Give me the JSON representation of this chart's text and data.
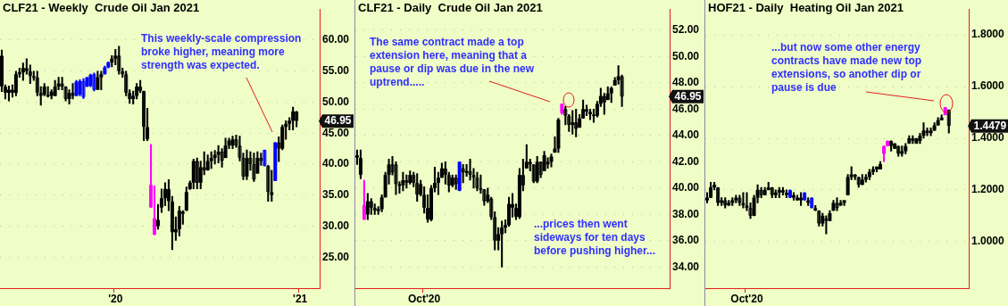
{
  "chart_data": [
    {
      "type": "candlestick",
      "title": "CLF21 - Weekly  Crude Oil Jan 2021",
      "categories": [
        null,
        null,
        null,
        null,
        null,
        null,
        null,
        null,
        null,
        null,
        null,
        null,
        null,
        null,
        null,
        null,
        null,
        null,
        null,
        null,
        null,
        null,
        null,
        null,
        null,
        null,
        null,
        null,
        null,
        null,
        null,
        null,
        "'20",
        null,
        null,
        null,
        null,
        null,
        null,
        null,
        null,
        null,
        null,
        null,
        null,
        null,
        null,
        null,
        null,
        null,
        null,
        null,
        null,
        null,
        null,
        null,
        null,
        null,
        null,
        null,
        null,
        null,
        null,
        null,
        null,
        null,
        null,
        null,
        null,
        null,
        null,
        null,
        null,
        null,
        null,
        null,
        null,
        null,
        null,
        null,
        null,
        null,
        null,
        null,
        "'21",
        null,
        null,
        null,
        null,
        null
      ],
      "ohlc": [
        [
          57.5,
          58.4,
          51.7,
          52.5
        ],
        [
          52.5,
          52.8,
          50.5,
          51.5
        ],
        [
          51.5,
          52.6,
          50.2,
          52.0
        ],
        [
          52.0,
          52.8,
          50.8,
          51.5
        ],
        [
          51.5,
          55.0,
          51.0,
          54.5
        ],
        [
          54.5,
          55.5,
          54.0,
          54.8
        ],
        [
          54.8,
          56.3,
          53.5,
          55.5
        ],
        [
          55.5,
          57.0,
          54.5,
          55.0
        ],
        [
          55.0,
          56.0,
          53.0,
          54.2
        ],
        [
          54.2,
          55.0,
          53.5,
          54.0
        ],
        [
          54.0,
          55.0,
          51.0,
          51.5
        ],
        [
          51.5,
          52.5,
          49.5,
          51.0
        ],
        [
          51.2,
          53.0,
          51.0,
          52.5
        ],
        [
          51.2,
          52.5,
          50.8,
          51.0
        ],
        [
          51.0,
          52.0,
          50.5,
          51.7
        ],
        [
          51.0,
          53.5,
          51.0,
          52.5
        ],
        [
          52.5,
          54.0,
          52.0,
          53.0
        ],
        [
          53.0,
          54.0,
          52.0,
          52.5
        ],
        [
          52.5,
          52.5,
          50.2,
          50.5
        ],
        [
          50.5,
          52.0,
          49.7,
          51.5
        ],
        [
          51.5,
          53.0,
          50.5,
          51.0
        ],
        [
          51.0,
          53.5,
          51.0,
          53.3
        ],
        [
          51.2,
          53.6,
          51.0,
          53.4
        ],
        [
          53.4,
          53.8,
          50.6,
          50.8
        ],
        [
          52.5,
          54.0,
          52.5,
          54.0
        ],
        [
          52.6,
          54.5,
          52.5,
          54.4
        ],
        [
          54.5,
          54.7,
          51.8,
          52.0
        ],
        [
          52.0,
          55.0,
          52.0,
          54.0
        ],
        [
          54.0,
          55.0,
          52.0,
          54.5
        ],
        [
          54.5,
          55.8,
          54.5,
          55.6
        ],
        [
          55.6,
          56.5,
          55.5,
          56.4
        ],
        [
          56.4,
          57.5,
          55.7,
          57.0
        ],
        [
          57.0,
          58.5,
          56.0,
          57.5
        ],
        [
          57.5,
          59.0,
          54.5,
          55.0
        ],
        [
          55.0,
          55.5,
          54.0,
          54.5
        ],
        [
          54.5,
          55.0,
          51.0,
          51.5
        ],
        [
          51.5,
          52.0,
          49.8,
          50.5
        ],
        [
          50.5,
          51.8,
          49.7,
          51.0
        ],
        [
          51.0,
          53.0,
          50.5,
          52.5
        ],
        [
          52.5,
          53.5,
          51.5,
          51.8
        ],
        [
          51.8,
          51.8,
          43.8,
          46.0
        ],
        [
          46.0,
          49.0,
          43.8,
          44.0
        ],
        [
          36.7,
          43.2,
          33.0,
          33.0
        ],
        [
          31.3,
          36.5,
          28.6,
          28.6
        ],
        [
          30.0,
          33.5,
          29.5,
          31.0
        ],
        [
          33.0,
          36.0,
          32.2,
          34.5
        ],
        [
          34.5,
          37.0,
          33.3,
          36.0
        ],
        [
          36.0,
          37.5,
          32.5,
          34.0
        ],
        [
          34.0,
          34.8,
          26.2,
          29.0
        ],
        [
          29.0,
          31.5,
          27.7,
          29.5
        ],
        [
          29.5,
          33.2,
          28.4,
          32.5
        ],
        [
          32.0,
          32.5,
          30.3,
          32.3
        ],
        [
          32.5,
          36.3,
          32.5,
          35.5
        ],
        [
          36.0,
          37.3,
          35.9,
          37.0
        ],
        [
          37.0,
          40.8,
          36.0,
          40.5
        ],
        [
          40.5,
          41.0,
          36.0,
          37.0
        ],
        [
          37.0,
          40.5,
          36.0,
          39.5
        ],
        [
          39.5,
          42.0,
          38.3,
          39.0
        ],
        [
          39.0,
          41.5,
          39.0,
          40.5
        ],
        [
          40.5,
          42.0,
          39.3,
          41.0
        ],
        [
          41.0,
          42.2,
          40.0,
          41.5
        ],
        [
          41.5,
          43.0,
          40.2,
          42.0
        ],
        [
          42.0,
          42.5,
          39.5,
          40.5
        ],
        [
          41.0,
          44.2,
          41.0,
          43.0
        ],
        [
          43.0,
          44.2,
          42.5,
          43.8
        ],
        [
          43.0,
          44.5,
          42.5,
          44.0
        ],
        [
          44.0,
          44.7,
          42.7,
          43.0
        ],
        [
          43.0,
          44.5,
          40.5,
          41.0
        ],
        [
          41.0,
          41.8,
          37.5,
          38.0
        ],
        [
          38.0,
          42.3,
          37.5,
          41.0
        ],
        [
          41.0,
          42.0,
          39.0,
          40.0
        ],
        [
          40.0,
          41.8,
          37.2,
          37.5
        ],
        [
          38.5,
          42.0,
          38.5,
          41.0
        ],
        [
          41.0,
          41.8,
          39.8,
          40.5
        ],
        [
          42.3,
          42.3,
          39.7,
          39.7
        ],
        [
          39.7,
          39.8,
          34.0,
          35.5
        ],
        [
          35.5,
          39.0,
          34.0,
          35.0
        ],
        [
          37.3,
          43.5,
          37.3,
          43.5
        ],
        [
          43.5,
          44.4,
          40.4,
          42.5
        ],
        [
          42.5,
          46.3,
          42.3,
          46.0
        ],
        [
          46.0,
          47.0,
          44.0,
          46.5
        ],
        [
          46.5,
          47.5,
          45.5,
          47.0
        ],
        [
          47.0,
          49.2,
          45.5,
          48.5
        ],
        [
          48.5,
          48.5,
          46.0,
          46.95
        ],
        null,
        null,
        null,
        null,
        null,
        null
      ],
      "colors": [
        "#000000",
        "#000000",
        "#000000",
        "#000000",
        "#000000",
        "#000000",
        "#000000",
        "#000000",
        "#000000",
        "#000000",
        "#000000",
        "#000000",
        "#000000",
        "#000000",
        "#000000",
        "#000000",
        "#000000",
        "#000000",
        "#000000",
        "#000000",
        "#000000",
        "#0000ff",
        "#0000ff",
        "#0000ff",
        "#0000ff",
        "#0000ff",
        "#0000ff",
        "#000000",
        "#000000",
        "#0000ff",
        "#0000ff",
        "#000000",
        "#000000",
        "#000000",
        "#000000",
        "#000000",
        "#000000",
        "#000000",
        "#000000",
        "#000000",
        "#000000",
        "#000000",
        "#ff00ff",
        "#ff00ff",
        "#000000",
        "#000000",
        "#000000",
        "#000000",
        "#000000",
        "#000000",
        "#000000",
        "#000000",
        "#000000",
        "#000000",
        "#000000",
        "#000000",
        "#000000",
        "#000000",
        "#000000",
        "#000000",
        "#000000",
        "#000000",
        "#000000",
        "#000000",
        "#000000",
        "#000000",
        "#000000",
        "#000000",
        "#000000",
        "#000000",
        "#000000",
        "#000000",
        "#000000",
        "#000000",
        "#0000ff",
        "#000000",
        "#000000",
        "#0000ff",
        "#000000",
        "#000000",
        "#000000",
        "#000000",
        "#000000",
        "#000000",
        null,
        null,
        null,
        null,
        null,
        null
      ],
      "ylim": [
        20,
        65
      ],
      "yticks": [
        {
          "value": 25,
          "label": "25.00"
        },
        {
          "value": 30,
          "label": "30.00"
        },
        {
          "value": 35,
          "label": "35.00"
        },
        {
          "value": 40,
          "label": "40.00"
        },
        {
          "value": 45,
          "label": "45.00"
        },
        {
          "value": 50,
          "label": "50.00"
        },
        {
          "value": 55,
          "label": "55.00"
        },
        {
          "value": 60,
          "label": "60.00"
        }
      ],
      "grid": "y",
      "annotations": [
        "This weekly-scale compression broke higher, meaning more strength was expected.",
        "46.95"
      ]
    },
    {
      "type": "candlestick",
      "title": "CLF21 - Daily  Crude Oil Jan 2021",
      "categories": [
        null,
        null,
        null,
        null,
        null,
        null,
        null,
        null,
        null,
        null,
        null,
        null,
        null,
        null,
        null,
        null,
        null,
        null,
        null,
        "Oct'20",
        null,
        null,
        null,
        null,
        null,
        null,
        null,
        null,
        null,
        null,
        null,
        null,
        null,
        null,
        null,
        null,
        null,
        null,
        null,
        null,
        null,
        null,
        null,
        null,
        null,
        null,
        null,
        null,
        null,
        null,
        null,
        null,
        null,
        null,
        null,
        null,
        null,
        null,
        null,
        null,
        null,
        null,
        null,
        null,
        null,
        null,
        null,
        null,
        null,
        null,
        null,
        null,
        null,
        null,
        null,
        null,
        null,
        null,
        null,
        null,
        null,
        null,
        null,
        null,
        null,
        null,
        null,
        null,
        null
      ],
      "ohlc": [
        [
          42.5,
          42.9,
          41.8,
          42.3
        ],
        [
          42.3,
          42.9,
          40.7,
          41.0
        ],
        [
          38.7,
          40.6,
          37.6,
          37.6
        ],
        [
          38.0,
          39.6,
          37.6,
          39.0
        ],
        [
          39.0,
          39.2,
          38.0,
          38.5
        ],
        [
          38.5,
          38.8,
          38.0,
          38.3
        ],
        [
          38.3,
          38.6,
          38.0,
          38.4
        ],
        [
          38.4,
          39.5,
          38.2,
          39.3
        ],
        [
          39.3,
          41.2,
          39.3,
          41.0
        ],
        [
          41.0,
          42.2,
          40.3,
          41.8
        ],
        [
          41.8,
          42.4,
          41.0,
          41.2
        ],
        [
          41.8,
          42.0,
          39.5,
          40.3
        ],
        [
          40.3,
          40.5,
          39.6,
          40.2
        ],
        [
          40.2,
          41.2,
          39.8,
          40.6
        ],
        [
          40.6,
          41.0,
          40.0,
          40.4
        ],
        [
          40.4,
          41.3,
          40.3,
          41.0
        ],
        [
          41.0,
          41.2,
          40.1,
          40.4
        ],
        [
          40.4,
          41.1,
          39.0,
          39.5
        ],
        [
          39.5,
          40.6,
          39.4,
          40.3
        ],
        [
          39.5,
          40.1,
          38.1,
          38.5
        ],
        [
          38.5,
          39.5,
          37.4,
          37.6
        ],
        [
          37.6,
          40.2,
          37.5,
          40.0
        ],
        [
          40.0,
          41.6,
          39.7,
          40.4
        ],
        [
          40.4,
          41.2,
          39.5,
          40.8
        ],
        [
          40.8,
          41.9,
          40.8,
          41.5
        ],
        [
          41.5,
          42.0,
          40.3,
          41.0
        ],
        [
          41.0,
          41.2,
          39.7,
          40.2
        ],
        [
          40.2,
          41.0,
          40.1,
          40.8
        ],
        [
          40.8,
          41.0,
          39.9,
          40.3
        ],
        [
          39.8,
          42.0,
          39.8,
          42.0
        ],
        [
          41.5,
          41.8,
          40.4,
          41.2
        ],
        [
          41.2,
          41.8,
          40.9,
          41.3
        ],
        [
          41.3,
          42.2,
          40.6,
          41.0
        ],
        [
          41.0,
          41.5,
          40.0,
          40.8
        ],
        [
          40.8,
          41.2,
          39.8,
          40.0
        ],
        [
          40.0,
          41.0,
          39.6,
          39.9
        ],
        [
          39.9,
          39.9,
          38.7,
          39.0
        ],
        [
          39.0,
          40.0,
          38.9,
          39.5
        ],
        [
          39.2,
          39.3,
          37.6,
          37.8
        ],
        [
          37.8,
          38.2,
          35.3,
          36.0
        ],
        [
          36.0,
          37.0,
          35.3,
          36.5
        ],
        [
          36.5,
          37.5,
          34.0,
          37.0
        ],
        [
          37.0,
          37.6,
          36.6,
          37.2
        ],
        [
          37.2,
          39.3,
          37.1,
          38.8
        ],
        [
          38.8,
          39.6,
          37.8,
          38.5
        ],
        [
          38.5,
          38.8,
          37.6,
          37.8
        ],
        [
          37.8,
          41.5,
          37.7,
          41.0
        ],
        [
          41.0,
          42.2,
          39.8,
          40.2
        ],
        [
          41.5,
          43.3,
          41.5,
          42.0
        ],
        [
          42.0,
          42.2,
          41.3,
          41.8
        ],
        [
          41.8,
          41.8,
          40.4,
          40.5
        ],
        [
          40.5,
          42.4,
          40.4,
          42.0
        ],
        [
          42.0,
          42.0,
          40.8,
          41.0
        ],
        [
          41.3,
          42.8,
          41.3,
          42.5
        ],
        [
          41.8,
          42.3,
          41.5,
          42.0
        ],
        [
          42.0,
          42.6,
          41.6,
          42.4
        ],
        [
          42.7,
          43.9,
          42.7,
          43.0
        ],
        [
          43.0,
          45.3,
          42.7,
          45.2
        ],
        [
          45.7,
          46.4,
          45.6,
          46.4
        ],
        [
          46.0,
          46.2,
          44.8,
          45.5
        ],
        [
          45.5,
          45.6,
          44.3,
          44.8
        ],
        [
          44.8,
          45.9,
          44.1,
          45.0
        ],
        [
          45.0,
          46.0,
          43.9,
          44.5
        ],
        [
          44.6,
          45.6,
          44.6,
          45.3
        ],
        [
          45.3,
          46.7,
          45.3,
          46.0
        ],
        [
          46.0,
          46.3,
          45.5,
          45.8
        ],
        [
          45.8,
          46.0,
          45.2,
          45.6
        ],
        [
          45.6,
          46.0,
          45.0,
          45.5
        ],
        [
          45.5,
          46.6,
          45.4,
          46.4
        ],
        [
          46.4,
          47.6,
          46.2,
          47.0
        ],
        [
          47.0,
          47.2,
          45.6,
          46.5
        ],
        [
          46.7,
          47.7,
          46.7,
          47.2
        ],
        [
          47.2,
          47.7,
          46.5,
          47.6
        ],
        [
          47.8,
          48.4,
          47.8,
          48.2
        ],
        [
          48.2,
          49.3,
          47.9,
          48.5
        ],
        [
          48.5,
          48.6,
          46.2,
          46.95
        ],
        null,
        null,
        null,
        null,
        null,
        null,
        null,
        null,
        null,
        null,
        null,
        null,
        null
      ],
      "colors": [
        "#000000",
        "#000000",
        "#ff00ff",
        "#000000",
        "#000000",
        "#000000",
        "#000000",
        "#000000",
        "#000000",
        "#000000",
        "#000000",
        "#000000",
        "#000000",
        "#000000",
        "#000000",
        "#000000",
        "#000000",
        "#000000",
        "#000000",
        "#000000",
        "#000000",
        "#000000",
        "#000000",
        "#000000",
        "#000000",
        "#000000",
        "#000000",
        "#000000",
        "#000000",
        "#0000ff",
        "#000000",
        "#000000",
        "#000000",
        "#000000",
        "#000000",
        "#000000",
        "#000000",
        "#000000",
        "#000000",
        "#000000",
        "#000000",
        "#000000",
        "#000000",
        "#000000",
        "#000000",
        "#000000",
        "#000000",
        "#000000",
        "#000000",
        "#000000",
        "#000000",
        "#000000",
        "#000000",
        "#000000",
        "#000000",
        "#000000",
        "#000000",
        "#000000",
        "#ff00ff",
        "#000000",
        "#000000",
        "#000000",
        "#000000",
        "#000000",
        "#000000",
        "#000000",
        "#000000",
        "#000000",
        "#000000",
        "#000000",
        "#000000",
        "#000000",
        "#000000",
        "#000000",
        "#000000",
        "#000000",
        null,
        null,
        null,
        null,
        null,
        null,
        null,
        null,
        null,
        null,
        null,
        null,
        null
      ],
      "ylim": [
        32.4,
        53.6
      ],
      "yticks": [
        {
          "value": 34,
          "label": "34.00"
        },
        {
          "value": 36,
          "label": "36.00"
        },
        {
          "value": 38,
          "label": "38.00"
        },
        {
          "value": 40,
          "label": "40.00"
        },
        {
          "value": 42,
          "label": "42.00"
        },
        {
          "value": 44,
          "label": "44.00"
        },
        {
          "value": 46,
          "label": "46.00"
        },
        {
          "value": 48,
          "label": "48.00"
        },
        {
          "value": 50,
          "label": "50.00"
        },
        {
          "value": 52,
          "label": "52.00"
        }
      ],
      "grid": "y",
      "annotations": [
        "The same contract made a top extension here, meaning that a pause or dip was due in the new uptrend.....",
        "...prices then went sideways for ten days before pushing higher...",
        "46.95"
      ]
    },
    {
      "type": "candlestick",
      "title": "HOF21 - Daily  Heating Oil Jan 2021",
      "categories": [
        null,
        null,
        null,
        null,
        null,
        null,
        null,
        null,
        null,
        null,
        null,
        "Oct'20",
        null,
        null,
        null,
        null,
        null,
        null,
        null,
        null,
        null,
        null,
        null,
        null,
        null,
        null,
        null,
        null,
        null,
        null,
        null,
        null,
        null,
        null,
        null,
        null,
        null,
        null,
        null,
        null,
        null,
        null,
        null,
        null,
        null,
        null,
        null,
        null,
        null,
        null,
        null,
        null,
        null,
        null,
        null,
        null,
        null,
        null,
        null,
        null,
        null,
        null,
        null,
        null,
        null,
        null,
        null,
        null,
        null,
        null,
        null,
        null,
        null
      ],
      "ohlc": [
        [
          1.16,
          1.19,
          1.15,
          1.17
        ],
        [
          1.17,
          1.23,
          1.17,
          1.21
        ],
        [
          1.21,
          1.23,
          1.2,
          1.22
        ],
        [
          1.21,
          1.21,
          1.14,
          1.15
        ],
        [
          1.15,
          1.17,
          1.14,
          1.16
        ],
        [
          1.16,
          1.17,
          1.13,
          1.14
        ],
        [
          1.14,
          1.16,
          1.14,
          1.15
        ],
        [
          1.15,
          1.17,
          1.14,
          1.16
        ],
        [
          1.16,
          1.18,
          1.15,
          1.17
        ],
        [
          1.17,
          1.18,
          1.14,
          1.15
        ],
        [
          1.15,
          1.19,
          1.13,
          1.14
        ],
        [
          1.14,
          1.19,
          1.12,
          1.13
        ],
        [
          1.13,
          1.15,
          1.09,
          1.1
        ],
        [
          1.1,
          1.18,
          1.1,
          1.17
        ],
        [
          1.17,
          1.22,
          1.15,
          1.2
        ],
        [
          1.2,
          1.21,
          1.17,
          1.18
        ],
        [
          1.18,
          1.21,
          1.18,
          1.2
        ],
        [
          1.2,
          1.23,
          1.2,
          1.21
        ],
        [
          1.21,
          1.21,
          1.17,
          1.18
        ],
        [
          1.18,
          1.2,
          1.17,
          1.19
        ],
        [
          1.19,
          1.21,
          1.17,
          1.2
        ],
        [
          1.2,
          1.21,
          1.18,
          1.19
        ],
        [
          1.19,
          1.2,
          1.17,
          1.18
        ],
        [
          1.2,
          1.2,
          1.17,
          1.17
        ],
        [
          1.17,
          1.19,
          1.16,
          1.18
        ],
        [
          1.16,
          1.18,
          1.16,
          1.17
        ],
        [
          1.16,
          1.19,
          1.14,
          1.17
        ],
        [
          1.19,
          1.19,
          1.16,
          1.16
        ],
        [
          1.16,
          1.17,
          1.14,
          1.15
        ],
        [
          1.17,
          1.17,
          1.13,
          1.13
        ],
        [
          1.13,
          1.14,
          1.12,
          1.12
        ],
        [
          1.12,
          1.12,
          1.06,
          1.07
        ],
        [
          1.07,
          1.11,
          1.06,
          1.1
        ],
        [
          1.09,
          1.1,
          1.03,
          1.08
        ],
        [
          1.08,
          1.12,
          1.08,
          1.11
        ],
        [
          1.12,
          1.16,
          1.12,
          1.15
        ],
        [
          1.15,
          1.17,
          1.12,
          1.13
        ],
        [
          1.14,
          1.16,
          1.14,
          1.15
        ],
        [
          1.15,
          1.16,
          1.14,
          1.16
        ],
        [
          1.18,
          1.26,
          1.18,
          1.25
        ],
        [
          1.25,
          1.29,
          1.24,
          1.26
        ],
        [
          1.26,
          1.26,
          1.24,
          1.25
        ],
        [
          1.25,
          1.25,
          1.21,
          1.22
        ],
        [
          1.22,
          1.26,
          1.22,
          1.24
        ],
        [
          1.24,
          1.26,
          1.23,
          1.25
        ],
        [
          1.25,
          1.28,
          1.24,
          1.27
        ],
        [
          1.27,
          1.29,
          1.26,
          1.28
        ],
        [
          1.28,
          1.29,
          1.27,
          1.29
        ],
        [
          1.28,
          1.31,
          1.28,
          1.3
        ],
        [
          1.34,
          1.37,
          1.31,
          1.37
        ],
        [
          1.37,
          1.39,
          1.37,
          1.39
        ],
        [
          1.39,
          1.39,
          1.35,
          1.37
        ],
        [
          1.36,
          1.38,
          1.36,
          1.38
        ],
        [
          1.37,
          1.37,
          1.33,
          1.34
        ],
        [
          1.34,
          1.37,
          1.33,
          1.35
        ],
        [
          1.35,
          1.38,
          1.34,
          1.37
        ],
        [
          1.38,
          1.41,
          1.38,
          1.4
        ],
        [
          1.4,
          1.41,
          1.38,
          1.39
        ],
        [
          1.38,
          1.4,
          1.38,
          1.4
        ],
        [
          1.39,
          1.42,
          1.38,
          1.41
        ],
        [
          1.41,
          1.46,
          1.4,
          1.43
        ],
        [
          1.43,
          1.44,
          1.41,
          1.42
        ],
        [
          1.42,
          1.44,
          1.41,
          1.43
        ],
        [
          1.43,
          1.46,
          1.43,
          1.45
        ],
        [
          1.45,
          1.48,
          1.45,
          1.47
        ],
        [
          1.47,
          1.49,
          1.47,
          1.48
        ],
        [
          1.49,
          1.52,
          1.49,
          1.52
        ],
        [
          1.51,
          1.51,
          1.42,
          1.4479
        ],
        null,
        null,
        null,
        null,
        null
      ],
      "colors": [
        "#000000",
        "#000000",
        "#000000",
        "#000000",
        "#000000",
        "#000000",
        "#000000",
        "#000000",
        "#000000",
        "#000000",
        "#000000",
        "#000000",
        "#000000",
        "#000000",
        "#000000",
        "#000000",
        "#000000",
        "#000000",
        "#000000",
        "#000000",
        "#000000",
        "#000000",
        "#000000",
        "#0000ff",
        "#000000",
        "#000000",
        "#000000",
        "#0000ff",
        "#000000",
        "#0000ff",
        "#000000",
        "#000000",
        "#000000",
        "#000000",
        "#000000",
        "#000000",
        "#000000",
        "#000000",
        "#000000",
        "#000000",
        "#000000",
        "#000000",
        "#000000",
        "#000000",
        "#000000",
        "#000000",
        "#000000",
        "#000000",
        "#000000",
        "#ff00ff",
        "#ff00ff",
        "#000000",
        "#000000",
        "#000000",
        "#000000",
        "#000000",
        "#000000",
        "#000000",
        "#000000",
        "#000000",
        "#000000",
        "#000000",
        "#000000",
        "#000000",
        "#000000",
        "#000000",
        "#ff00ff",
        "#000000",
        null,
        null,
        null,
        null,
        null
      ],
      "ylim": [
        0.82,
        1.9
      ],
      "yticks": [
        {
          "value": 1.0,
          "label": "1.0000"
        },
        {
          "value": 1.2,
          "label": "1.2000"
        },
        {
          "value": 1.4,
          "label": "1.4000"
        },
        {
          "value": 1.6,
          "label": "1.6000"
        },
        {
          "value": 1.8,
          "label": "1.8000"
        }
      ],
      "grid": "y",
      "annotations": [
        "...but now some other energy contracts have made new top extensions, so another dip or pause is due",
        "1.4479"
      ]
    }
  ]
}
